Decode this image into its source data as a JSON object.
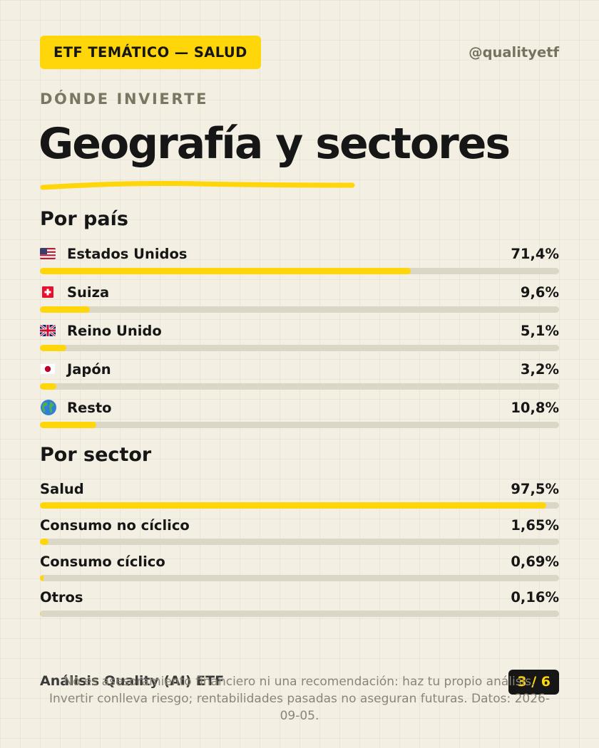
{
  "header": {
    "tag": "ETF TEMÁTICO — SALUD",
    "handle": "@qualityetf"
  },
  "kicker": "DÓNDE INVIERTE",
  "title": "Geografía y sectores",
  "colors": {
    "accent": "#ffd60a",
    "track": "#dcd6c6",
    "text": "#161616",
    "muted": "#7b7662"
  },
  "countries": {
    "heading": "Por país",
    "items": [
      {
        "flag": "us-flag-icon",
        "label": "Estados Unidos",
        "value": "71,4%",
        "pct": 71.4
      },
      {
        "flag": "ch-flag-icon",
        "label": "Suiza",
        "value": "9,6%",
        "pct": 9.6
      },
      {
        "flag": "uk-flag-icon",
        "label": "Reino Unido",
        "value": "5,1%",
        "pct": 5.1
      },
      {
        "flag": "jp-flag-icon",
        "label": "Japón",
        "value": "3,2%",
        "pct": 3.2
      },
      {
        "flag": "globe-icon",
        "label": "Resto",
        "value": "10,8%",
        "pct": 10.8
      }
    ]
  },
  "sectors": {
    "heading": "Por sector",
    "items": [
      {
        "label": "Salud",
        "value": "97,5%",
        "pct": 97.5
      },
      {
        "label": "Consumo no cíclico",
        "value": "1,65%",
        "pct": 1.65
      },
      {
        "label": "Consumo cíclico",
        "value": "0,69%",
        "pct": 0.69
      },
      {
        "label": "Otros",
        "value": "0,16%",
        "pct": 0.16
      }
    ]
  },
  "footer": {
    "brand": "Análisis Quality (AI) ETF",
    "page": "3 / 6",
    "disclaimer": "No es asesoramiento financiero ni una recomendación: haz tu propio análisis. Invertir conlleva riesgo; rentabilidades pasadas no aseguran futuras. Datos: 2026-09-05."
  }
}
